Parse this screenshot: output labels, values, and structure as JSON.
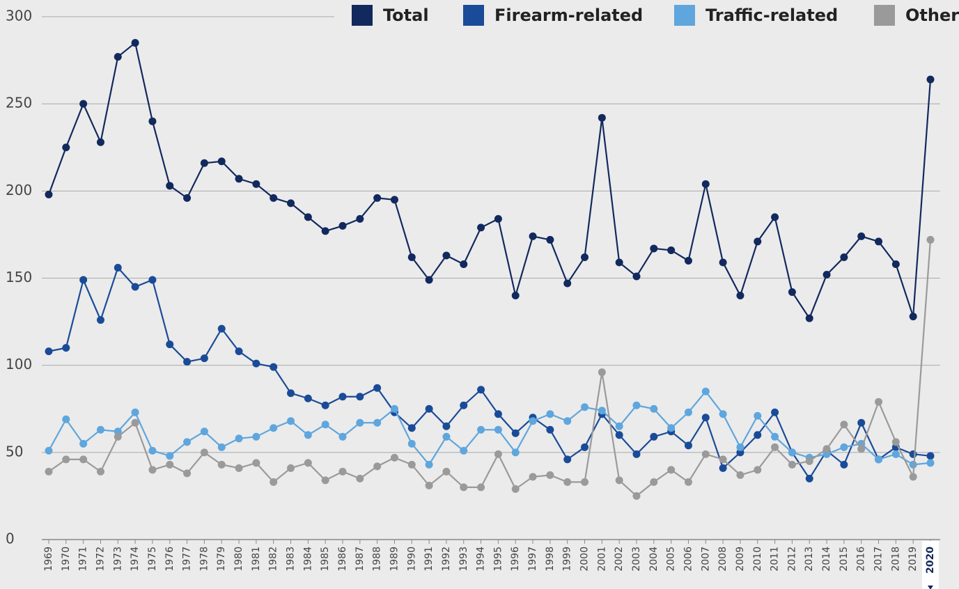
{
  "chart_data": {
    "type": "line",
    "categories": [
      "1969",
      "1970",
      "1971",
      "1972",
      "1973",
      "1974",
      "1975",
      "1976",
      "1977",
      "1978",
      "1979",
      "1980",
      "1981",
      "1982",
      "1983",
      "1984",
      "1985",
      "1986",
      "1987",
      "1988",
      "1989",
      "1990",
      "1991",
      "1992",
      "1993",
      "1994",
      "1995",
      "1996",
      "1997",
      "1998",
      "1999",
      "2000",
      "2001",
      "2002",
      "2003",
      "2004",
      "2005",
      "2006",
      "2007",
      "2008",
      "2009",
      "2010",
      "2011",
      "2012",
      "2013",
      "2014",
      "2015",
      "2016",
      "2017",
      "2018",
      "2019",
      "2020"
    ],
    "series": [
      {
        "name": "Total",
        "color": "#12295e",
        "values": [
          198,
          225,
          250,
          228,
          277,
          285,
          240,
          203,
          196,
          216,
          217,
          207,
          204,
          196,
          193,
          185,
          177,
          180,
          184,
          196,
          195,
          162,
          149,
          163,
          158,
          179,
          184,
          140,
          174,
          172,
          147,
          162,
          242,
          159,
          151,
          167,
          166,
          160,
          204,
          159,
          140,
          171,
          185,
          142,
          127,
          152,
          162,
          174,
          171,
          158,
          128,
          264
        ]
      },
      {
        "name": "Firearm-related",
        "color": "#1a4b98",
        "values": [
          108,
          110,
          149,
          126,
          156,
          145,
          149,
          112,
          102,
          104,
          121,
          108,
          101,
          99,
          84,
          81,
          77,
          82,
          82,
          87,
          73,
          64,
          75,
          65,
          77,
          86,
          72,
          61,
          70,
          63,
          46,
          53,
          72,
          60,
          49,
          59,
          62,
          54,
          70,
          41,
          50,
          60,
          73,
          50,
          35,
          51,
          43,
          67,
          46,
          53,
          49,
          48
        ]
      },
      {
        "name": "Traffic-related",
        "color": "#5ea6dd",
        "values": [
          51,
          69,
          55,
          63,
          62,
          73,
          51,
          48,
          56,
          62,
          53,
          58,
          59,
          64,
          68,
          60,
          66,
          59,
          67,
          67,
          75,
          55,
          43,
          59,
          51,
          63,
          63,
          50,
          68,
          72,
          68,
          76,
          74,
          65,
          77,
          75,
          64,
          73,
          85,
          72,
          53,
          71,
          59,
          50,
          47,
          49,
          53,
          55,
          46,
          49,
          43,
          44
        ]
      },
      {
        "name": "Other",
        "color": "#9a9a9a",
        "values": [
          39,
          46,
          46,
          39,
          59,
          67,
          40,
          43,
          38,
          50,
          43,
          41,
          44,
          33,
          41,
          44,
          34,
          39,
          35,
          42,
          47,
          43,
          31,
          39,
          30,
          30,
          49,
          29,
          36,
          37,
          33,
          33,
          96,
          34,
          25,
          33,
          40,
          33,
          49,
          46,
          37,
          40,
          53,
          43,
          45,
          52,
          66,
          52,
          79,
          56,
          36,
          172
        ]
      }
    ],
    "ylim": [
      0,
      300
    ],
    "yticks": [
      0,
      50,
      100,
      150,
      200,
      250,
      300
    ],
    "grid": true,
    "legend": "upper right"
  }
}
